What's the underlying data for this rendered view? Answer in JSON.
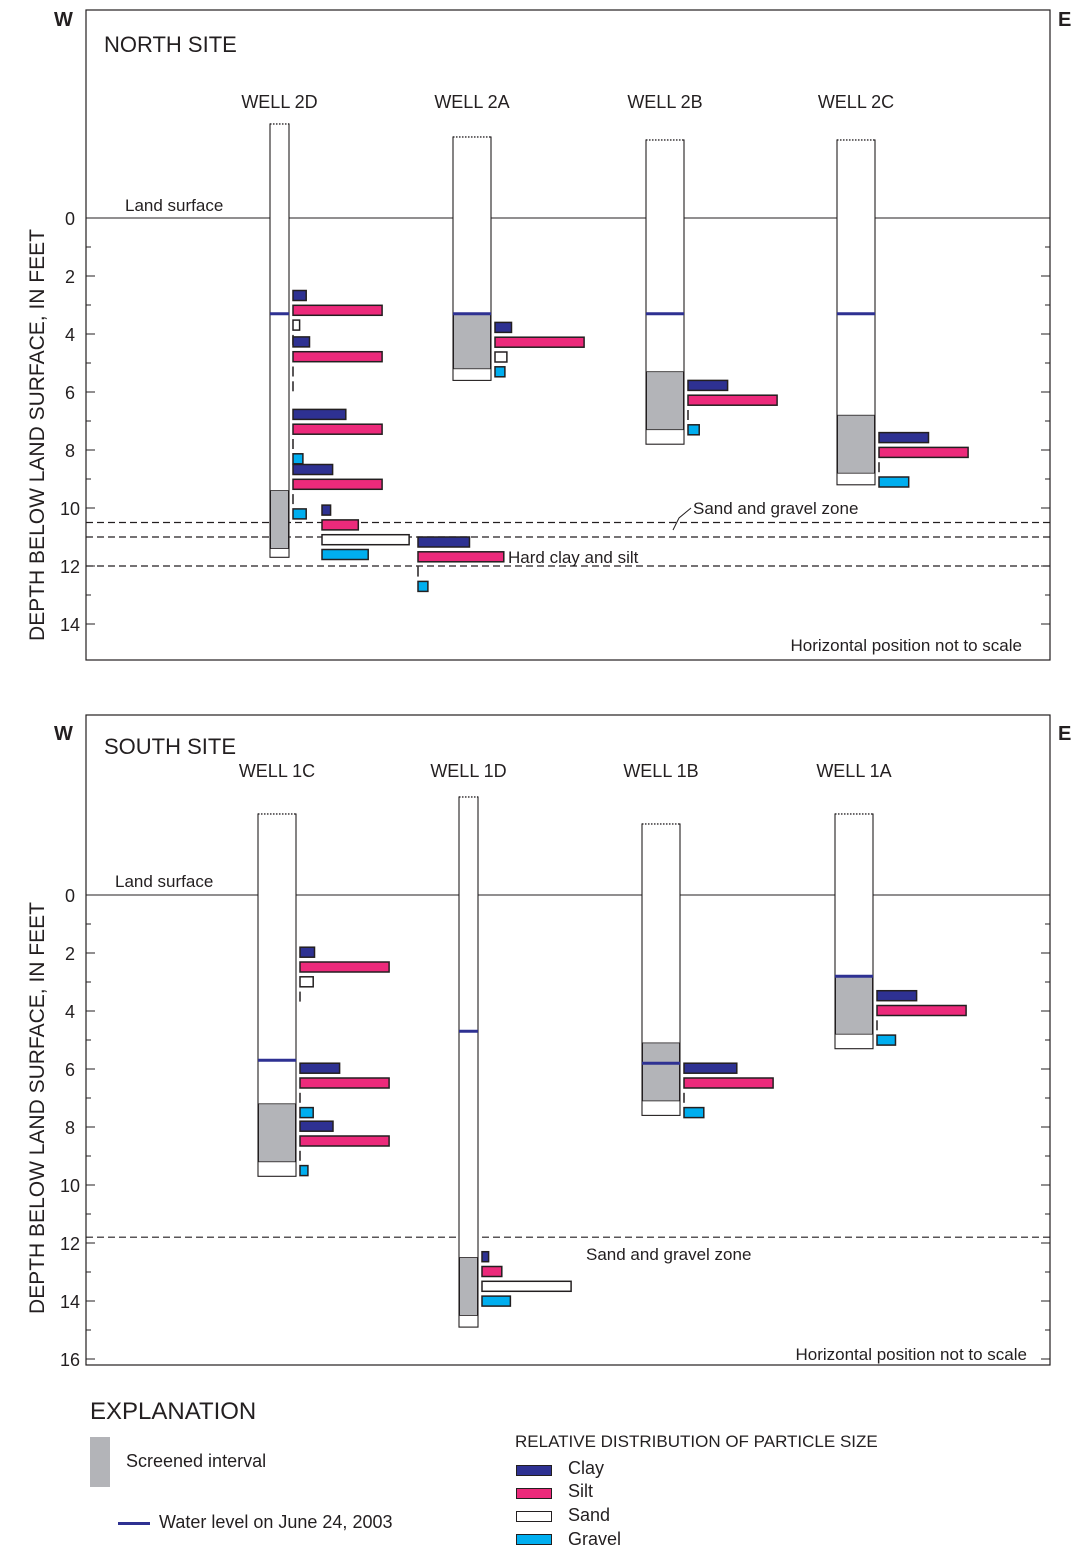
{
  "colors": {
    "clay": "#2e3192",
    "silt": "#ec2a7b",
    "sand": "#ffffff",
    "gravel": "#00aeef",
    "screen": "#b3b4b8",
    "water": "#2e3192",
    "line": "#231f20"
  },
  "y_axis_label": "DEPTH BELOW LAND SURFACE, IN FEET",
  "north": {
    "title": "NORTH SITE",
    "west_label": "W",
    "east_label": "E",
    "land_surface_label": "Land surface",
    "scale_note": "Horizontal position not to scale",
    "y_ticks": [
      "0",
      "2",
      "4",
      "6",
      "8",
      "10",
      "12",
      "14"
    ],
    "zone_labels": [
      "Sand and gravel zone",
      "Hard clay and silt"
    ],
    "zone_depths": [
      10.5,
      11.0,
      12.0
    ],
    "wells": [
      {
        "name": "WELL 2D",
        "bottom": 11.7,
        "screen_top": 9.4,
        "screen_bottom": 11.4,
        "water": 3.3,
        "samples": [
          {
            "depth": 2.5,
            "clay": 0.2,
            "silt": 1.35,
            "sand": 0.1,
            "gravel": 0.0
          },
          {
            "depth": 4.1,
            "clay": 0.25,
            "silt": 1.35,
            "sand": 0.0,
            "gravel": 0.0
          },
          {
            "depth": 6.6,
            "clay": 0.8,
            "silt": 1.35,
            "sand": 0.0,
            "gravel": 0.15
          },
          {
            "depth": 8.5,
            "clay": 0.6,
            "silt": 1.35,
            "sand": 0.0,
            "gravel": 0.2
          }
        ]
      },
      {
        "name": "WELL 2A",
        "bottom": 5.6,
        "screen_top": 3.3,
        "screen_bottom": 5.2,
        "water": 3.3,
        "samples": [
          {
            "depth": 3.6,
            "clay": 0.25,
            "silt": 1.35,
            "sand": 0.18,
            "gravel": 0.15
          }
        ]
      },
      {
        "name": "WELL 2B",
        "bottom": 7.8,
        "screen_top": 5.3,
        "screen_bottom": 7.3,
        "water": 3.3,
        "samples": [
          {
            "depth": 5.6,
            "clay": 0.6,
            "silt": 1.35,
            "sand": 0.0,
            "gravel": 0.17
          }
        ]
      },
      {
        "name": "WELL 2C",
        "bottom": 9.2,
        "screen_top": 6.8,
        "screen_bottom": 8.8,
        "water": 3.3,
        "samples": [
          {
            "depth": 7.4,
            "clay": 0.75,
            "silt": 1.35,
            "sand": 0.0,
            "gravel": 0.45
          }
        ]
      }
    ],
    "zone_samples": [
      {
        "depth": 9.9,
        "clay": 0.13,
        "silt": 0.55,
        "sand": 1.32,
        "gravel": 0.7
      },
      {
        "depth": 11.0,
        "clay": 0.78,
        "silt": 1.3,
        "sand": 0.0,
        "gravel": 0.15
      }
    ]
  },
  "south": {
    "title": "SOUTH SITE",
    "west_label": "W",
    "east_label": "E",
    "land_surface_label": "Land surface",
    "scale_note": "Horizontal position not to scale",
    "y_ticks": [
      "0",
      "2",
      "4",
      "6",
      "8",
      "10",
      "12",
      "14",
      "16"
    ],
    "zone_labels": [
      "Sand and gravel zone"
    ],
    "zone_depths": [
      11.8
    ],
    "wells": [
      {
        "name": "WELL 1C",
        "bottom": 9.7,
        "screen_top": 7.2,
        "screen_bottom": 9.2,
        "water": 5.7,
        "samples": [
          {
            "depth": 1.8,
            "clay": 0.22,
            "silt": 1.35,
            "sand": 0.2,
            "gravel": 0.0
          },
          {
            "depth": 5.8,
            "clay": 0.6,
            "silt": 1.35,
            "sand": 0.0,
            "gravel": 0.2
          },
          {
            "depth": 7.8,
            "clay": 0.5,
            "silt": 1.35,
            "sand": 0.0,
            "gravel": 0.12
          }
        ]
      },
      {
        "name": "WELL 1D",
        "bottom": 14.9,
        "screen_top": 12.5,
        "screen_bottom": 14.5,
        "water": 4.7,
        "samples": [
          {
            "depth": 12.3,
            "clay": 0.1,
            "silt": 0.3,
            "sand": 1.35,
            "gravel": 0.43
          }
        ]
      },
      {
        "name": "WELL 1B",
        "bottom": 7.6,
        "screen_top": 5.1,
        "screen_bottom": 7.1,
        "water": 5.8,
        "samples": [
          {
            "depth": 5.8,
            "clay": 0.8,
            "silt": 1.35,
            "sand": 0.0,
            "gravel": 0.3
          }
        ]
      },
      {
        "name": "WELL 1A",
        "bottom": 5.3,
        "screen_top": 2.8,
        "screen_bottom": 4.8,
        "water": 2.8,
        "samples": [
          {
            "depth": 3.3,
            "clay": 0.6,
            "silt": 1.35,
            "sand": 0.0,
            "gravel": 0.28
          }
        ]
      }
    ]
  },
  "legend": {
    "title": "EXPLANATION",
    "screened_interval": "Screened interval",
    "water_level": "Water level on June 24, 2003",
    "particle_title": "RELATIVE DISTRIBUTION OF PARTICLE SIZE",
    "clay": "Clay",
    "silt": "Silt",
    "sand": "Sand",
    "gravel": "Gravel"
  }
}
